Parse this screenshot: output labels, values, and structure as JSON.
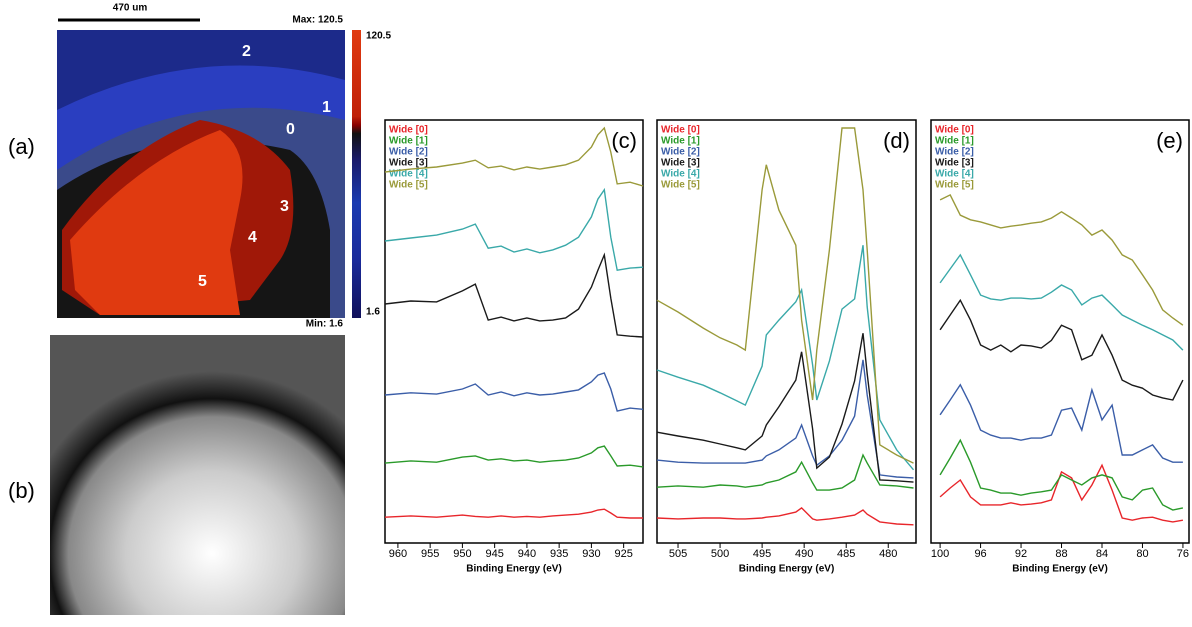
{
  "panels": {
    "a": {
      "label": "(a)",
      "scale_bar": "470 um",
      "max": "Max: 120.5",
      "min": "Min: 1.6",
      "colorbar_top": "120.5",
      "colorbar_bottom": "1.6",
      "regions": [
        "0",
        "1",
        "2",
        "3",
        "4",
        "5"
      ]
    },
    "b": {
      "label": "(b)"
    }
  },
  "chart_data": [
    {
      "type": "line",
      "label": "(c)",
      "x_label": "Binding Energy (eV)",
      "x": [
        962,
        958,
        954,
        950,
        948,
        946,
        944,
        942,
        940,
        938,
        936,
        934,
        932,
        930,
        929,
        928,
        927,
        926,
        924,
        922
      ],
      "xlim": [
        962,
        922
      ],
      "xticks": [
        960,
        955,
        950,
        945,
        940,
        935,
        930,
        925
      ],
      "ylim": [
        0,
        100
      ],
      "series": [
        {
          "name": "Wide [0]",
          "color": "#e8262b",
          "values": [
            6.1,
            6.4,
            6.1,
            6.6,
            6.3,
            6.1,
            6.4,
            6.1,
            6.3,
            6.1,
            6.4,
            6.6,
            6.8,
            7.3,
            7.8,
            8.0,
            7.1,
            6.1,
            5.9,
            5.9
          ]
        },
        {
          "name": "Wide [1]",
          "color": "#2a9a2a",
          "values": [
            18.9,
            19.4,
            19.1,
            20.3,
            20.6,
            19.6,
            19.9,
            19.4,
            19.6,
            19.1,
            19.4,
            19.6,
            20.1,
            21.3,
            22.5,
            22.9,
            20.6,
            18.2,
            18.4,
            18.0
          ]
        },
        {
          "name": "Wide [2]",
          "color": "#3b5ea8",
          "values": [
            35.0,
            35.5,
            35.2,
            36.4,
            37.6,
            35.0,
            35.7,
            34.8,
            35.5,
            35.0,
            35.2,
            35.7,
            36.2,
            38.1,
            39.7,
            40.2,
            36.4,
            31.2,
            31.9,
            31.6
          ]
        },
        {
          "name": "Wide [3]",
          "color": "#1a1a1a",
          "values": [
            56.5,
            57.2,
            57.0,
            59.6,
            61.2,
            52.7,
            53.4,
            52.5,
            53.2,
            52.5,
            52.7,
            53.2,
            55.3,
            60.5,
            64.5,
            68.1,
            57.9,
            49.2,
            48.9,
            48.7
          ]
        },
        {
          "name": "Wide [4]",
          "color": "#3aa9a9",
          "values": [
            71.4,
            72.1,
            72.8,
            74.2,
            75.4,
            69.7,
            70.2,
            68.8,
            69.5,
            68.6,
            69.3,
            70.4,
            72.3,
            77.1,
            81.3,
            83.5,
            72.3,
            64.5,
            65.0,
            65.2
          ]
        },
        {
          "name": "Wide [5]",
          "color": "#9a9a3a",
          "values": [
            87.7,
            88.4,
            88.9,
            89.8,
            90.5,
            88.7,
            89.1,
            88.2,
            88.9,
            88.4,
            88.9,
            89.4,
            90.5,
            93.6,
            96.5,
            98.1,
            92.4,
            84.9,
            85.3,
            84.4
          ]
        }
      ]
    },
    {
      "type": "line",
      "label": "(d)",
      "x_label": "Binding Energy (eV)",
      "x": [
        507.5,
        505,
        502,
        500,
        498,
        497,
        495,
        494.5,
        493,
        491,
        490.3,
        489,
        488.5,
        487,
        485.5,
        484,
        483,
        482.5,
        481,
        479,
        477
      ],
      "xlim": [
        507.5,
        476.7
      ],
      "xticks": [
        505,
        500,
        495,
        490,
        485,
        480
      ],
      "ylim": [
        0,
        100
      ],
      "series": [
        {
          "name": "Wide [0]",
          "color": "#e8262b",
          "values": [
            5.9,
            5.7,
            5.9,
            5.9,
            5.7,
            5.7,
            5.9,
            6.1,
            6.4,
            7.3,
            8.3,
            5.7,
            5.4,
            5.7,
            6.1,
            6.6,
            7.8,
            6.8,
            5.0,
            4.5,
            4.3
          ]
        },
        {
          "name": "Wide [1]",
          "color": "#2a9a2a",
          "values": [
            13.2,
            13.5,
            13.2,
            13.7,
            13.5,
            13.2,
            13.7,
            14.2,
            14.9,
            16.8,
            19.1,
            14.2,
            12.5,
            12.5,
            13.0,
            14.9,
            20.8,
            18.9,
            13.7,
            13.5,
            13.0
          ]
        },
        {
          "name": "Wide [2]",
          "color": "#3b5ea8",
          "values": [
            19.6,
            19.1,
            18.9,
            18.9,
            18.9,
            18.9,
            19.6,
            20.6,
            22.0,
            24.8,
            27.9,
            20.6,
            18.4,
            20.6,
            24.3,
            30.0,
            43.3,
            35.0,
            16.1,
            15.6,
            15.4
          ]
        },
        {
          "name": "Wide [3]",
          "color": "#1a1a1a",
          "values": [
            26.2,
            25.3,
            24.3,
            23.4,
            22.5,
            22.0,
            25.3,
            27.9,
            32.2,
            38.5,
            45.2,
            27.0,
            17.7,
            20.3,
            28.1,
            38.3,
            49.6,
            40.0,
            14.9,
            14.7,
            14.4
          ]
        },
        {
          "name": "Wide [4]",
          "color": "#3aa9a9",
          "values": [
            40.9,
            39.2,
            37.3,
            35.5,
            33.6,
            32.6,
            41.8,
            49.2,
            52.7,
            57.0,
            59.8,
            42.1,
            33.8,
            43.0,
            55.3,
            57.7,
            70.4,
            55.8,
            29.1,
            22.0,
            17.3
          ]
        },
        {
          "name": "Wide [5]",
          "color": "#9a9a3a",
          "values": [
            57.4,
            54.6,
            50.8,
            48.5,
            46.8,
            45.6,
            83.5,
            89.4,
            78.7,
            70.4,
            52.7,
            33.8,
            45.6,
            69.3,
            98.1,
            98.1,
            83.5,
            69.3,
            23.2,
            20.8,
            18.9
          ]
        }
      ]
    },
    {
      "type": "line",
      "label": "(e)",
      "x_label": "Binding Energy (eV)",
      "x": [
        100,
        99,
        98,
        97,
        96,
        95,
        94,
        93,
        92,
        91,
        90,
        89,
        88,
        87,
        86,
        85,
        84,
        83,
        82,
        81,
        80,
        79,
        78,
        77,
        76
      ],
      "xlim": [
        100.9,
        75.4
      ],
      "xticks": [
        100,
        96,
        92,
        88,
        84,
        80,
        76
      ],
      "ylim": [
        0,
        100
      ],
      "series": [
        {
          "name": "Wide [0]",
          "color": "#e8262b",
          "values": [
            10.9,
            13.0,
            14.9,
            10.9,
            9.0,
            9.0,
            9.0,
            9.5,
            9.0,
            9.2,
            9.5,
            10.2,
            16.8,
            15.4,
            10.2,
            13.7,
            18.4,
            12.5,
            5.9,
            5.4,
            5.9,
            6.1,
            5.4,
            5.0,
            5.4
          ]
        },
        {
          "name": "Wide [1]",
          "color": "#2a9a2a",
          "values": [
            16.1,
            20.1,
            24.3,
            19.1,
            13.0,
            12.5,
            11.8,
            11.8,
            11.3,
            11.8,
            12.1,
            12.5,
            16.1,
            14.9,
            13.7,
            15.4,
            16.1,
            15.4,
            10.9,
            10.2,
            12.5,
            13.0,
            9.0,
            7.8,
            8.3
          ]
        },
        {
          "name": "Wide [2]",
          "color": "#3b5ea8",
          "values": [
            30.3,
            33.8,
            37.4,
            32.6,
            26.7,
            25.5,
            24.8,
            24.8,
            24.3,
            24.8,
            24.8,
            25.5,
            31.4,
            31.9,
            26.7,
            36.2,
            29.1,
            32.6,
            20.8,
            20.8,
            22.0,
            23.2,
            20.1,
            19.1,
            19.1
          ]
        },
        {
          "name": "Wide [3]",
          "color": "#1a1a1a",
          "values": [
            50.4,
            53.9,
            57.4,
            52.7,
            46.8,
            45.6,
            46.8,
            45.2,
            46.8,
            46.6,
            46.1,
            47.9,
            51.5,
            50.4,
            43.3,
            44.4,
            49.2,
            44.4,
            38.5,
            37.3,
            36.6,
            35.0,
            34.3,
            33.8,
            38.5
          ]
        },
        {
          "name": "Wide [4]",
          "color": "#3aa9a9",
          "values": [
            61.5,
            64.8,
            68.1,
            63.4,
            58.6,
            57.7,
            57.4,
            57.9,
            57.9,
            57.7,
            57.9,
            59.3,
            61.0,
            59.8,
            56.3,
            57.9,
            58.6,
            56.3,
            53.9,
            52.7,
            51.5,
            50.4,
            49.2,
            48.0,
            45.6
          ]
        },
        {
          "name": "Wide [5]",
          "color": "#9a9a3a",
          "values": [
            81.1,
            82.3,
            77.5,
            76.4,
            75.9,
            75.2,
            74.5,
            74.9,
            75.2,
            75.6,
            75.9,
            76.8,
            78.3,
            76.8,
            75.2,
            72.8,
            74.0,
            71.6,
            68.1,
            66.9,
            63.4,
            59.8,
            55.1,
            53.2,
            51.5
          ]
        }
      ]
    }
  ]
}
